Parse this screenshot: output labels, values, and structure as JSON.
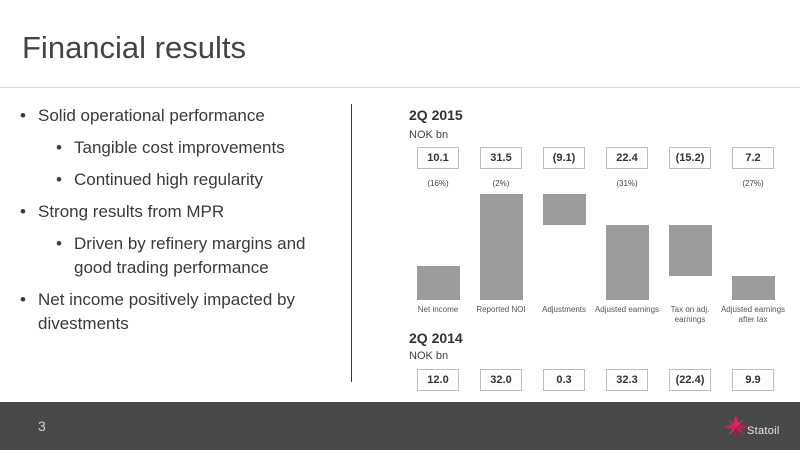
{
  "slide": {
    "title": "Financial results",
    "page_number": "3",
    "logo_text": "Statoil"
  },
  "bullets": [
    {
      "level": 1,
      "text": "Solid operational performance"
    },
    {
      "level": 2,
      "text": "Tangible cost improvements"
    },
    {
      "level": 2,
      "text": "Continued high regularity"
    },
    {
      "level": 1,
      "text": "Strong results from MPR"
    },
    {
      "level": 2,
      "text": "Driven by refinery margins and good trading performance"
    },
    {
      "level": 1,
      "text": "Net income positively impacted by divestments"
    }
  ],
  "colors": {
    "bar": "#9b9b9b",
    "footer": "#484848",
    "logo_accent": "#c2185b"
  },
  "chart_data": {
    "type": "bar",
    "subtype": "waterfall",
    "categories": [
      "Net income",
      "Reported NOI",
      "Adjustments",
      "Adjusted earnings",
      "Tax on adj. earnings",
      "Adjusted earnings after tax"
    ],
    "period_2015": {
      "title": "2Q 2015",
      "unit": "NOK bn",
      "values": [
        "10.1",
        "31.5",
        "(9.1)",
        "22.4",
        "(15.2)",
        "7.2"
      ],
      "percentages": [
        "(16%)",
        "(2%)",
        "",
        "(31%)",
        "",
        "(27%)"
      ],
      "bars": [
        {
          "base": 0,
          "value": 10.1
        },
        {
          "base": 0,
          "value": 31.5
        },
        {
          "base": 22.4,
          "value": 9.1
        },
        {
          "base": 0,
          "value": 22.4
        },
        {
          "base": 7.2,
          "value": 15.2
        },
        {
          "base": 0,
          "value": 7.2
        }
      ]
    },
    "period_2014": {
      "title": "2Q 2014",
      "unit": "NOK bn",
      "values": [
        "12.0",
        "32.0",
        "0.3",
        "32.3",
        "(22.4)",
        "9.9"
      ]
    }
  }
}
